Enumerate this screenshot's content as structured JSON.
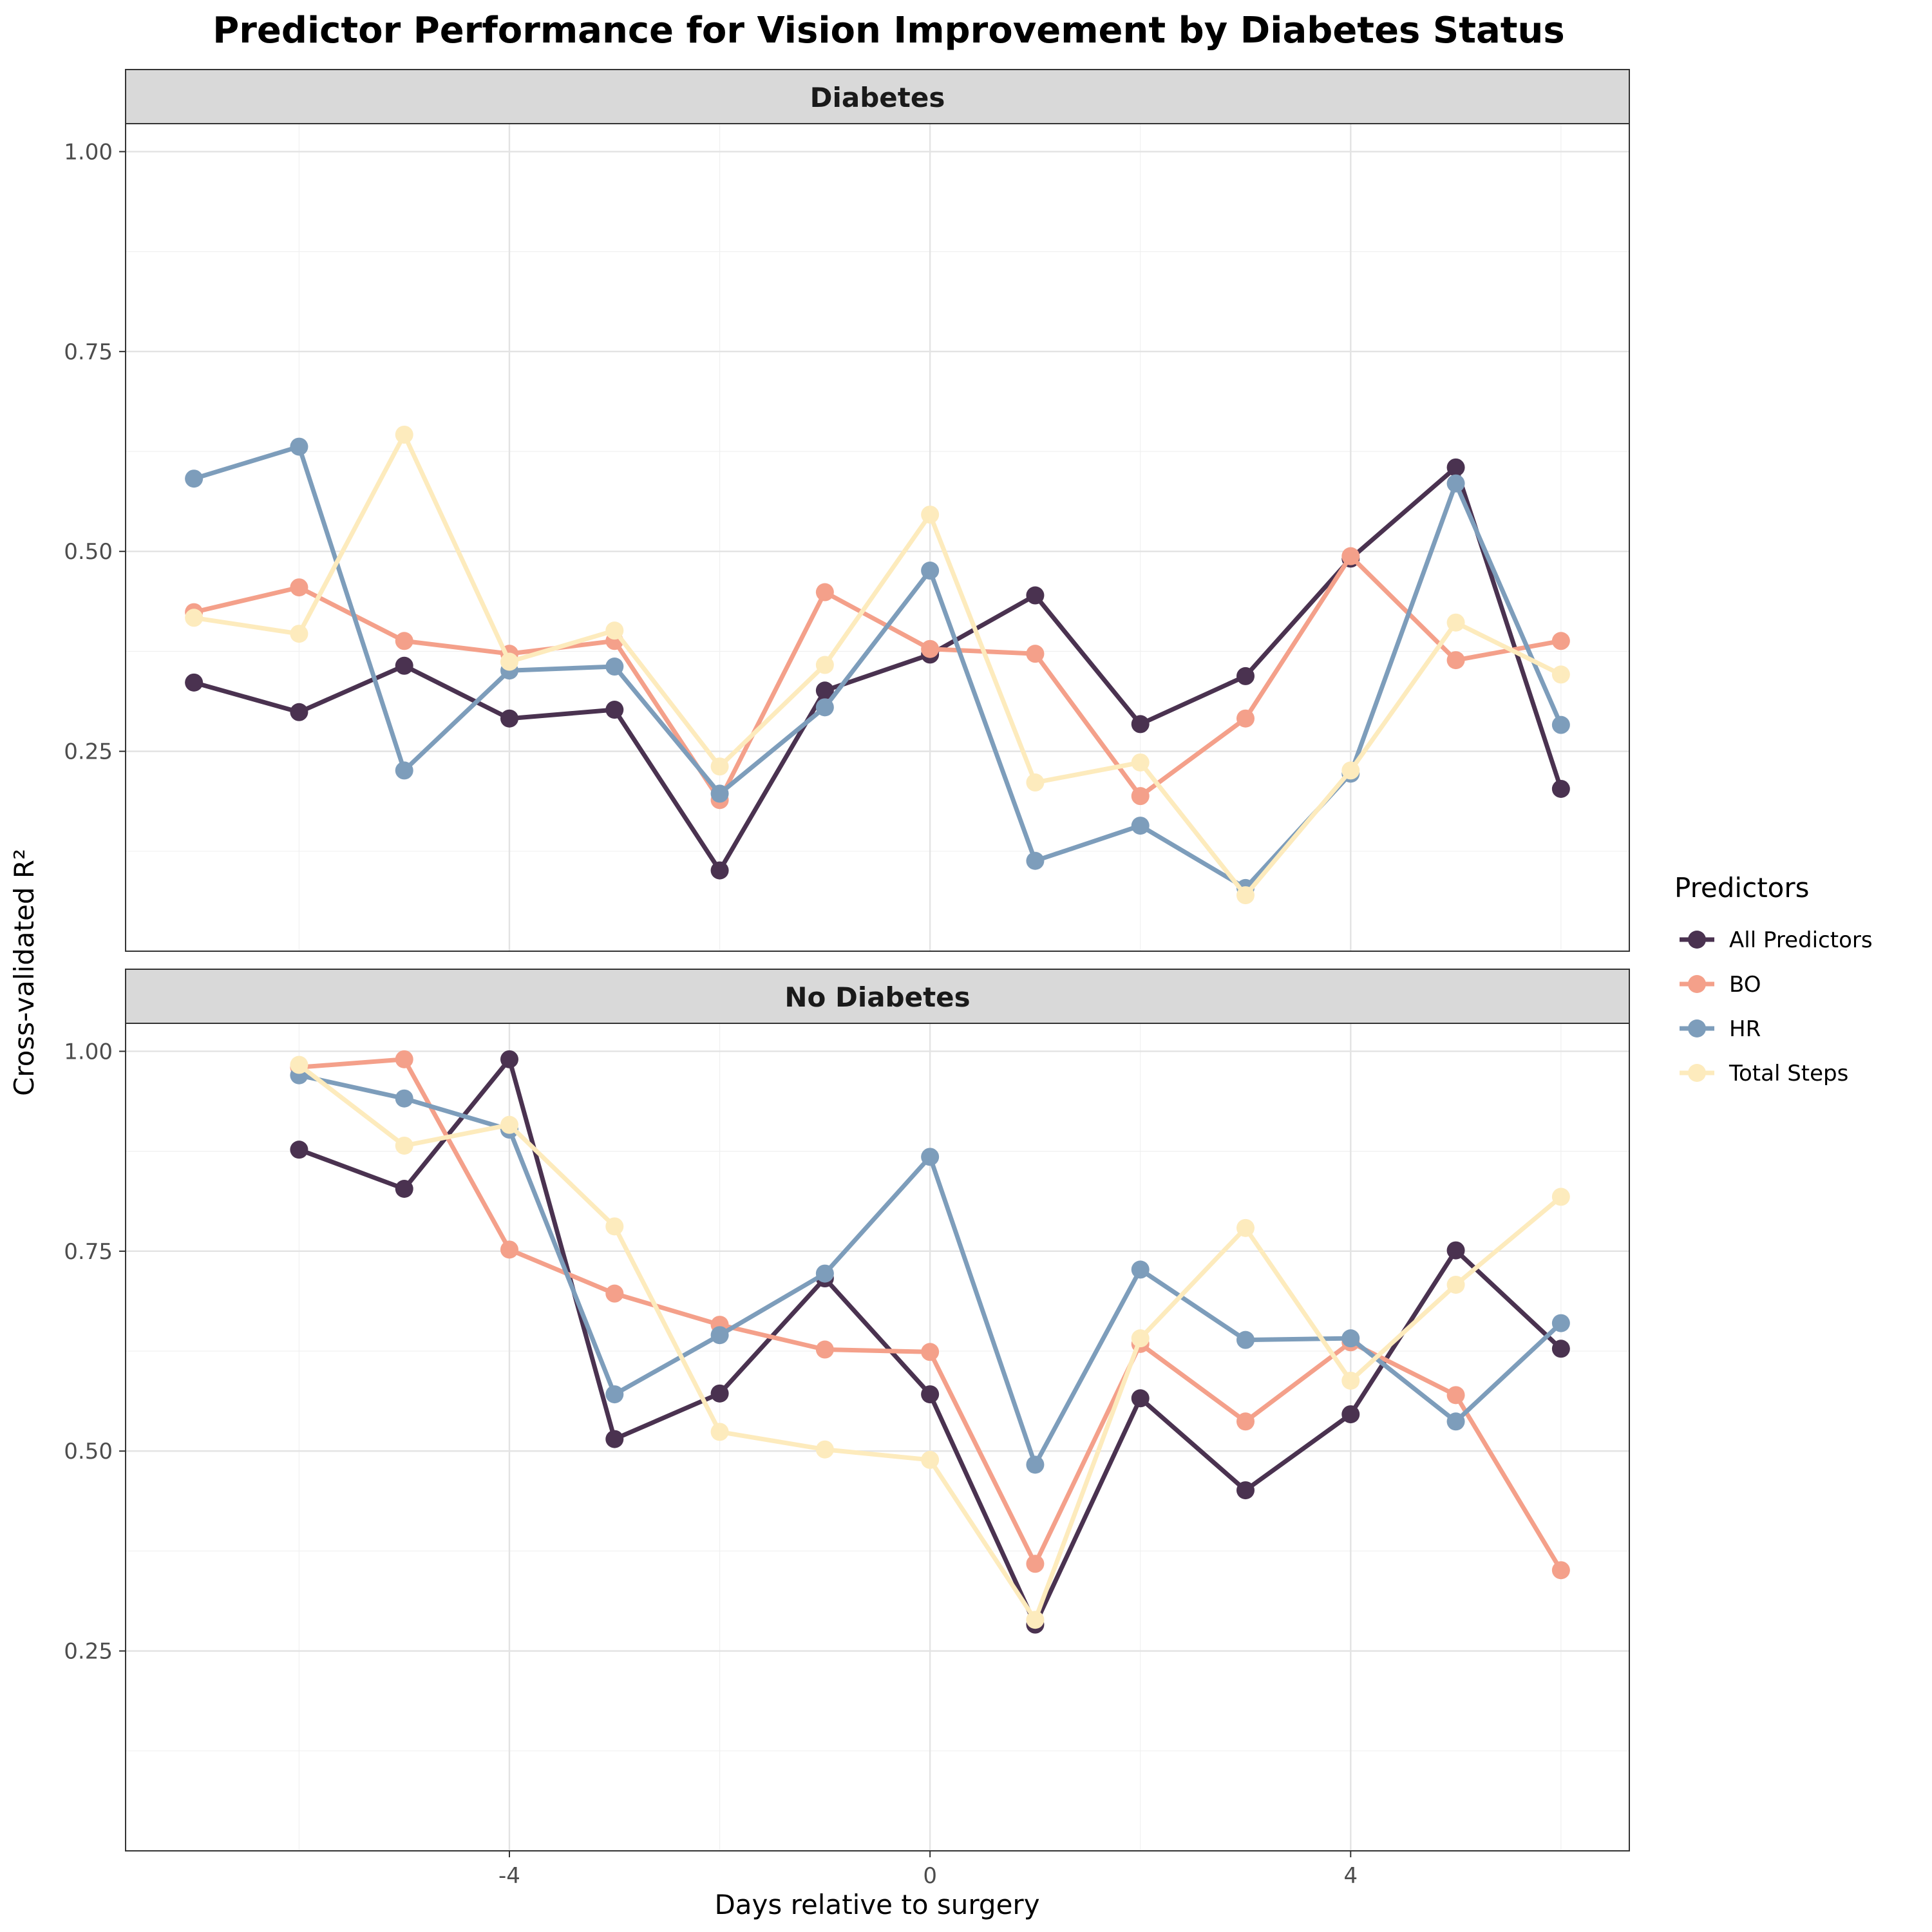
{
  "chart_data": {
    "type": "line",
    "title": "Predictor Performance for Vision Improvement by Diabetes Status",
    "xlabel": "Days relative to surgery",
    "ylabel": "Cross-validated R²",
    "x_ticks": [
      -4,
      0,
      4
    ],
    "y_ticks": [
      0.25,
      0.5,
      0.75,
      1.0
    ],
    "y_tick_labels": [
      "0.25",
      "0.50",
      "0.75",
      "1.00"
    ],
    "xlim": [
      -7.65,
      6.65
    ],
    "ylim": [
      0.0,
      1.035
    ],
    "grid": true,
    "legend": {
      "title": "Predictors",
      "position": "right"
    },
    "series_styles": [
      {
        "name": "All Predictors",
        "color": "#4a3250"
      },
      {
        "name": "BO",
        "color": "#f4a08a"
      },
      {
        "name": "HR",
        "color": "#7d9dbb"
      },
      {
        "name": "Total Steps",
        "color": "#fdebbd"
      }
    ],
    "facets": [
      {
        "label": "Diabetes",
        "series": [
          {
            "name": "All Predictors",
            "x": [
              -7,
              -6,
              -5,
              -4,
              -3,
              -2,
              -1,
              0,
              1,
              2,
              3,
              4,
              5,
              6
            ],
            "y": [
              0.336,
              0.299,
              0.357,
              0.291,
              0.302,
              0.101,
              0.326,
              0.371,
              0.445,
              0.284,
              0.344,
              0.491,
              0.605,
              0.203
            ]
          },
          {
            "name": "BO",
            "x": [
              -7,
              -6,
              -5,
              -4,
              -3,
              -2,
              -1,
              0,
              1,
              2,
              3,
              4,
              5,
              6
            ],
            "y": [
              0.424,
              0.455,
              0.388,
              0.372,
              0.388,
              0.189,
              0.449,
              0.378,
              0.372,
              0.194,
              0.291,
              0.494,
              0.364,
              0.388
            ]
          },
          {
            "name": "HR",
            "x": [
              -7,
              -6,
              -5,
              -4,
              -3,
              -2,
              -1,
              0,
              1,
              2,
              3,
              4,
              5,
              6
            ],
            "y": [
              0.591,
              0.631,
              0.226,
              0.351,
              0.356,
              0.197,
              0.305,
              0.476,
              0.113,
              0.157,
              0.079,
              0.222,
              0.585,
              0.283
            ]
          },
          {
            "name": "Total Steps",
            "x": [
              -7,
              -6,
              -5,
              -4,
              -3,
              -2,
              -1,
              0,
              1,
              2,
              3,
              4,
              5,
              6
            ],
            "y": [
              0.417,
              0.397,
              0.646,
              0.362,
              0.401,
              0.231,
              0.358,
              0.546,
              0.211,
              0.236,
              0.07,
              0.226,
              0.411,
              0.346
            ]
          }
        ]
      },
      {
        "label": "No Diabetes",
        "series": [
          {
            "name": "All Predictors",
            "x": [
              -6,
              -5,
              -4,
              -3,
              -2,
              -1,
              0,
              1,
              2,
              3,
              4,
              5,
              6
            ],
            "y": [
              0.877,
              0.828,
              0.99,
              0.515,
              0.572,
              0.716,
              0.571,
              0.283,
              0.566,
              0.451,
              0.546,
              0.751,
              0.628
            ]
          },
          {
            "name": "BO",
            "x": [
              -6,
              -5,
              -4,
              -3,
              -2,
              -1,
              0,
              1,
              2,
              3,
              4,
              5,
              6
            ],
            "y": [
              0.98,
              0.99,
              0.752,
              0.697,
              0.658,
              0.627,
              0.624,
              0.359,
              0.634,
              0.537,
              0.636,
              0.57,
              0.351
            ]
          },
          {
            "name": "HR",
            "x": [
              -6,
              -5,
              -4,
              -3,
              -2,
              -1,
              0,
              1,
              2,
              3,
              4,
              5,
              6
            ],
            "y": [
              0.97,
              0.941,
              0.902,
              0.571,
              0.645,
              0.722,
              0.868,
              0.483,
              0.727,
              0.639,
              0.641,
              0.537,
              0.66
            ]
          },
          {
            "name": "Total Steps",
            "x": [
              -6,
              -5,
              -4,
              -3,
              -2,
              -1,
              0,
              1,
              2,
              3,
              4,
              5,
              6
            ],
            "y": [
              0.983,
              0.882,
              0.908,
              0.781,
              0.524,
              0.502,
              0.489,
              0.289,
              0.641,
              0.779,
              0.588,
              0.708,
              0.818
            ]
          }
        ]
      }
    ]
  }
}
